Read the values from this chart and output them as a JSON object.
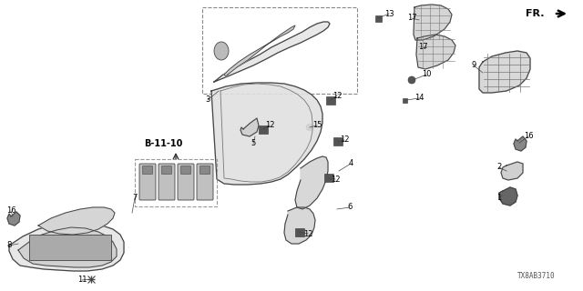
{
  "diagram_code": "TX8AB3710",
  "background_color": "#ffffff",
  "line_color": "#444444",
  "fr_label": "FR.",
  "reference_label": "B-11-10",
  "figsize": [
    6.4,
    3.2
  ],
  "dpi": 100
}
